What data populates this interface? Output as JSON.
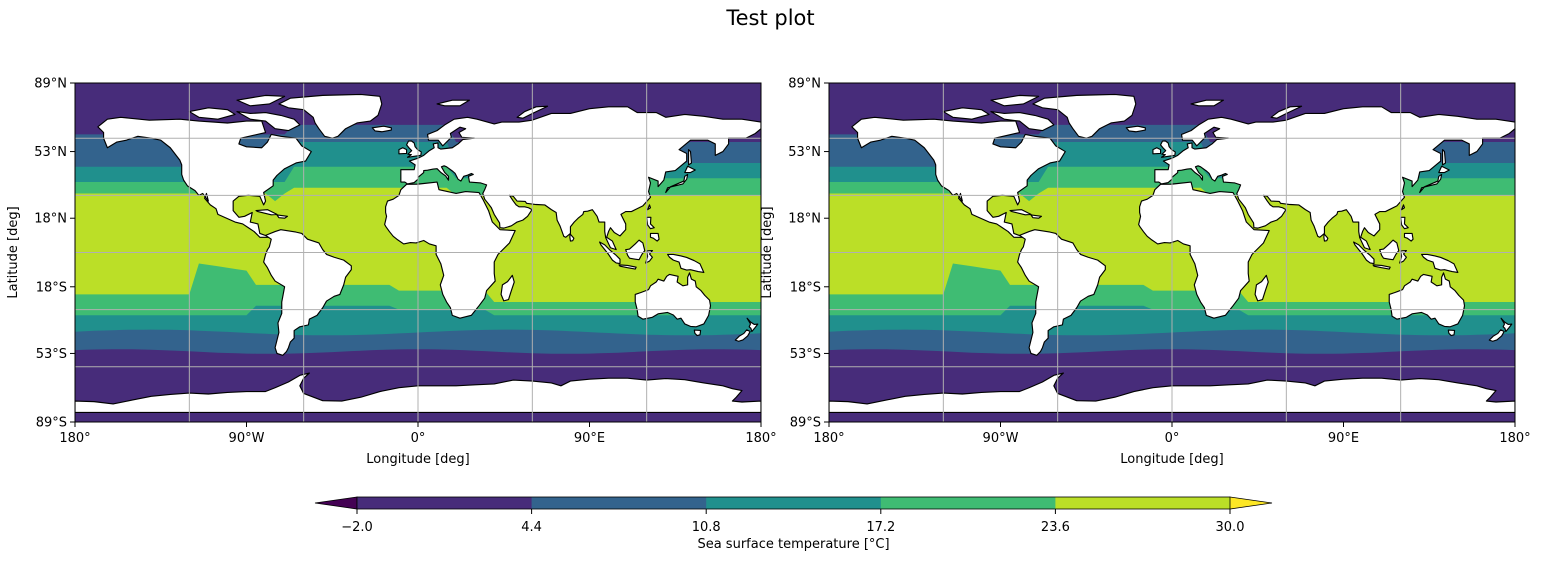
{
  "figure": {
    "title": "Test plot"
  },
  "panels": [
    {
      "id": "left",
      "xlabel": "Longitude [deg]",
      "ylabel": "Latitude [deg]",
      "lon_ticks": [
        {
          "lon": -180,
          "label": "180°"
        },
        {
          "lon": -90,
          "label": "90°W"
        },
        {
          "lon": 0,
          "label": "0°"
        },
        {
          "lon": 90,
          "label": "90°E"
        },
        {
          "lon": 180,
          "label": "180°"
        }
      ],
      "lat_ticks": [
        {
          "lat": 89,
          "label": "89°N"
        },
        {
          "lat": 53,
          "label": "53°N"
        },
        {
          "lat": 18,
          "label": "18°N"
        },
        {
          "lat": -18,
          "label": "18°S"
        },
        {
          "lat": -53,
          "label": "53°S"
        },
        {
          "lat": -89,
          "label": "89°S"
        }
      ]
    },
    {
      "id": "right",
      "xlabel": "Longitude [deg]",
      "ylabel": "Latitude [deg]",
      "lon_ticks": [
        {
          "lon": -180,
          "label": "180°"
        },
        {
          "lon": -90,
          "label": "90°W"
        },
        {
          "lon": 0,
          "label": "0°"
        },
        {
          "lon": 90,
          "label": "90°E"
        },
        {
          "lon": 180,
          "label": "180°"
        }
      ],
      "lat_ticks": [
        {
          "lat": 89,
          "label": "89°N"
        },
        {
          "lat": 53,
          "label": "53°N"
        },
        {
          "lat": 18,
          "label": "18°N"
        },
        {
          "lat": -18,
          "label": "18°S"
        },
        {
          "lat": -53,
          "label": "53°S"
        },
        {
          "lat": -89,
          "label": "89°S"
        }
      ]
    }
  ],
  "gridlines": {
    "lon": [
      -120,
      -60,
      0,
      60,
      120
    ],
    "lat": [
      60,
      30,
      0,
      -30,
      -60
    ]
  },
  "colorbar": {
    "label": "Sea surface temperature [°C]",
    "tick_labels": [
      "−2.0",
      "4.4",
      "10.8",
      "17.2",
      "23.6",
      "30.0"
    ],
    "levels": [
      -2.0,
      4.4,
      10.8,
      17.2,
      23.6,
      30.0
    ],
    "colors": [
      "#472c7a",
      "#33638d",
      "#20908d",
      "#3fbc73",
      "#bbdf27"
    ],
    "under_color": "#440154",
    "over_color": "#fde725"
  },
  "colors": {
    "land": "#ffffff",
    "coastline": "#000000",
    "grid": "#b0b0b0"
  }
}
